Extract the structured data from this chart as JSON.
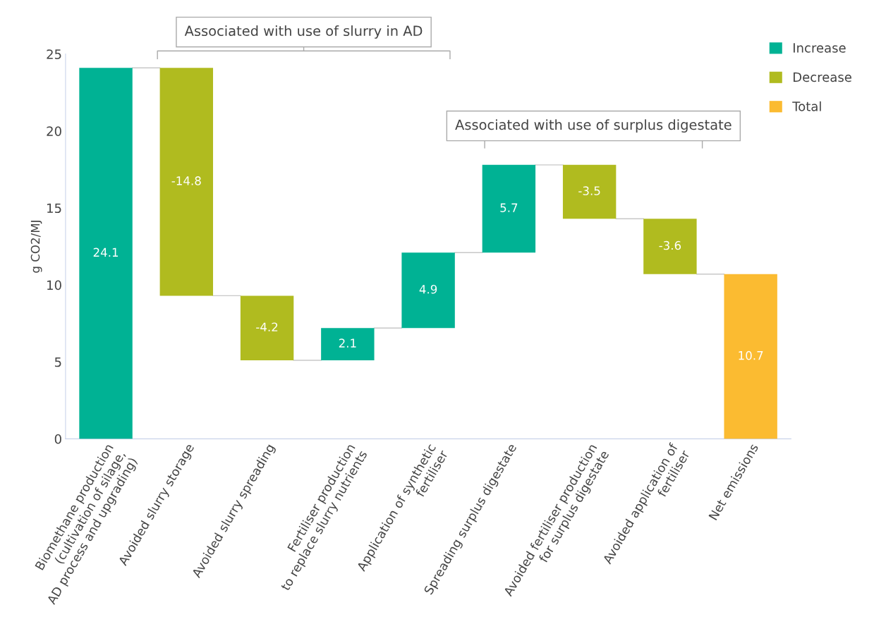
{
  "chart_data": {
    "type": "bar",
    "ylabel": "g CO2/MJ",
    "categories": [
      "Biomethane production\n(cultivation of silage,\nAD process and upgrading)",
      "Avoided slurry storage",
      "Avoided slurry spreading",
      "Fertiliser production\nto replace slurry nutrients",
      "Application of synthetic\nfertiliser",
      "Spreading surplus digestate",
      "Avoided fertiliser production\nfor surplus digestate",
      "Avoided application of\nfertiliser",
      "Net emissions"
    ],
    "series": [
      {
        "name": "Increase",
        "color": "#00b294",
        "values": [
          24.1,
          null,
          null,
          2.1,
          4.9,
          5.7,
          null,
          null,
          null
        ],
        "base": [
          0,
          null,
          null,
          5.1,
          7.2,
          12.1,
          null,
          null,
          null
        ]
      },
      {
        "name": "Decrease",
        "color": "#b0bb1f",
        "values": [
          null,
          -14.8,
          -4.2,
          null,
          null,
          null,
          -3.5,
          -3.6,
          null
        ],
        "base": [
          null,
          24.1,
          9.3,
          null,
          null,
          null,
          17.8,
          14.3,
          null
        ]
      },
      {
        "name": "Total",
        "color": "#fbbb31",
        "values": [
          null,
          null,
          null,
          null,
          null,
          null,
          null,
          null,
          10.7
        ],
        "base": [
          null,
          null,
          null,
          null,
          null,
          null,
          null,
          null,
          0
        ]
      }
    ],
    "ylim": [
      0,
      25
    ],
    "yticks": [
      0,
      5,
      10,
      15,
      20,
      25
    ],
    "grid": false,
    "legend": "top right",
    "data_labels": true,
    "annotations": [
      "Associated with use of slurry in AD",
      "Associated with use of surplus digestate"
    ]
  }
}
